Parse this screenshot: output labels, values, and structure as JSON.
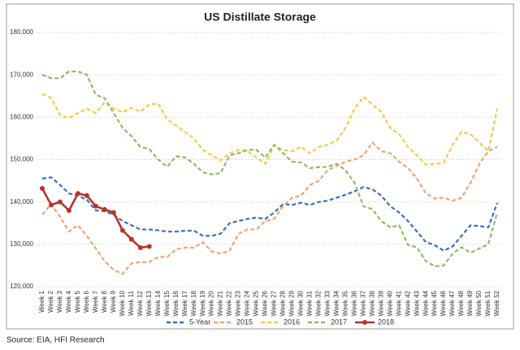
{
  "chart_data": {
    "type": "line",
    "title": "US Distillate Storage",
    "source": "Source: EIA, HFI Research",
    "categories": [
      "Week 1",
      "Week 2",
      "Week 3",
      "Week 4",
      "Week 5",
      "Week 6",
      "Week 7",
      "Week 8",
      "Week 9",
      "Week 10",
      "Week 11",
      "Week 12",
      "Week 13",
      "Week 14",
      "Week 15",
      "Week 16",
      "Week 17",
      "Week 18",
      "Week 19",
      "Week 20",
      "Week 21",
      "Week 22",
      "Week 23",
      "Week 24",
      "Week 25",
      "Week 26",
      "Week 27",
      "Week 28",
      "Week 29",
      "Week 30",
      "Week 31",
      "Week 32",
      "Week 33",
      "Week 34",
      "Week 35",
      "Week 36",
      "Week 37",
      "Week 38",
      "Week 39",
      "Week 40",
      "Week 41",
      "Week 42",
      "Week 43",
      "Week 44",
      "Week 45",
      "Week 46",
      "Week 47",
      "Week 48",
      "Week 49",
      "Week 50",
      "Week 51",
      "Week 52"
    ],
    "ylim": [
      120000,
      180000
    ],
    "yticks": [
      {
        "value": 120000,
        "label": "120,000"
      },
      {
        "value": 130000,
        "label": "130,000"
      },
      {
        "value": 140000,
        "label": "140,000"
      },
      {
        "value": 150000,
        "label": "150,000"
      },
      {
        "value": 160000,
        "label": "160,000"
      },
      {
        "value": 170000,
        "label": "170,000"
      },
      {
        "value": 180000,
        "label": "180,000"
      }
    ],
    "grid": true,
    "series": [
      {
        "name": "5-Year",
        "color": "#3a70bd",
        "dashed": true,
        "values": [
          145500,
          145800,
          144000,
          142000,
          141500,
          140500,
          138000,
          137800,
          137000,
          135500,
          134500,
          133500,
          133500,
          133300,
          133000,
          133000,
          133200,
          133200,
          132000,
          132000,
          132500,
          135000,
          135500,
          136000,
          136300,
          136000,
          137500,
          139500,
          139300,
          139800,
          139300,
          140000,
          140300,
          141000,
          141700,
          142500,
          143500,
          143000,
          141500,
          139000,
          137500,
          135500,
          133000,
          130500,
          129800,
          128500,
          129500,
          132000,
          134500,
          134300,
          134000,
          139800
        ]
      },
      {
        "name": "2015",
        "color": "#f0a472",
        "dashed": true,
        "values": [
          137000,
          139500,
          136500,
          133000,
          134500,
          132000,
          129000,
          126000,
          124000,
          123000,
          125500,
          125800,
          125800,
          127000,
          127000,
          128800,
          129200,
          129200,
          130500,
          128300,
          127800,
          128500,
          132500,
          133500,
          133500,
          135500,
          136000,
          139000,
          141000,
          141500,
          144000,
          145000,
          147500,
          148500,
          149500,
          150000,
          151000,
          154000,
          152000,
          151500,
          149500,
          148000,
          145500,
          142000,
          140800,
          141000,
          140300,
          141000,
          144500,
          149000,
          152000,
          153000
        ]
      },
      {
        "name": "2016",
        "color": "#f7c94a",
        "dashed": true,
        "values": [
          165500,
          164500,
          160500,
          159800,
          161000,
          162000,
          161000,
          163500,
          162000,
          161200,
          162200,
          161300,
          163000,
          163200,
          159500,
          158000,
          156500,
          155000,
          152300,
          151000,
          149800,
          151500,
          152300,
          152000,
          150500,
          149000,
          153300,
          152300,
          152000,
          153000,
          151500,
          153000,
          153500,
          154500,
          157500,
          162000,
          164800,
          163000,
          161300,
          157500,
          156000,
          153000,
          151000,
          148800,
          149000,
          149200,
          153500,
          156500,
          156000,
          154000,
          152000,
          162000
        ]
      },
      {
        "name": "2017",
        "color": "#90bb62",
        "dashed": true,
        "values": [
          170000,
          169200,
          169200,
          170800,
          170800,
          170000,
          165300,
          164500,
          161000,
          157500,
          155500,
          153000,
          152500,
          150000,
          148300,
          150800,
          150500,
          149000,
          147000,
          146500,
          146800,
          151000,
          151500,
          152300,
          152300,
          150500,
          153500,
          151500,
          149500,
          149300,
          148000,
          148200,
          148300,
          149000,
          147500,
          144500,
          139000,
          138300,
          135500,
          134000,
          134500,
          129800,
          129300,
          126000,
          124800,
          125000,
          127800,
          129300,
          128000,
          129000,
          130000,
          137500
        ]
      },
      {
        "name": "2018",
        "color": "#b8322c",
        "dashed": false,
        "markers": true,
        "values": [
          143200,
          139300,
          140000,
          138000,
          142000,
          141500,
          139000,
          138200,
          137500,
          133300,
          131200,
          129200,
          129500,
          null,
          null,
          null,
          null,
          null,
          null,
          null,
          null,
          null,
          null,
          null,
          null,
          null,
          null,
          null,
          null,
          null,
          null,
          null,
          null,
          null,
          null,
          null,
          null,
          null,
          null,
          null,
          null,
          null,
          null,
          null,
          null,
          null,
          null,
          null,
          null,
          null,
          null,
          null
        ]
      }
    ]
  }
}
